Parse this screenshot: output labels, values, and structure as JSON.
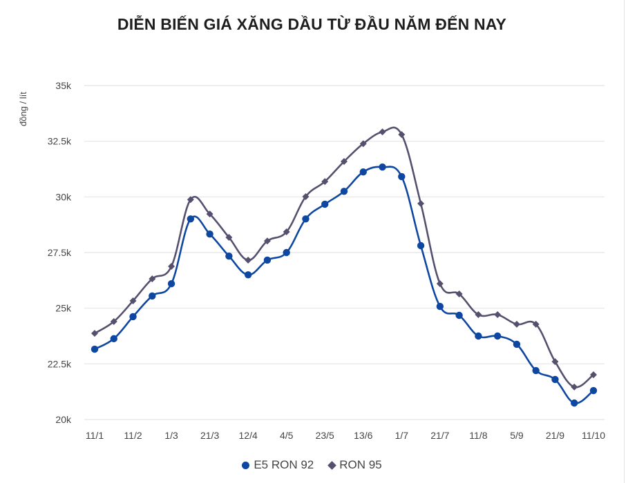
{
  "chart_data": {
    "type": "line",
    "title": "DIỄN BIẾN GIÁ XĂNG DẦU TỪ ĐẦU NĂM ĐẾN NAY",
    "xlabel": "",
    "ylabel": "đồng / lít",
    "ylim": [
      20000,
      35000
    ],
    "yticks": [
      20000,
      22500,
      25000,
      27500,
      30000,
      32500,
      35000
    ],
    "ytick_labels": [
      "20k",
      "22.5k",
      "25k",
      "27.5k",
      "30k",
      "32.5k",
      "35k"
    ],
    "x_tick_labels": [
      "11/1",
      "11/2",
      "1/3",
      "21/3",
      "12/4",
      "4/5",
      "23/5",
      "13/6",
      "1/7",
      "21/7",
      "11/8",
      "5/9",
      "21/9",
      "11/10"
    ],
    "x_tick_every": 2,
    "num_points": 27,
    "grid": "horizontal",
    "legend_position": "bottom",
    "series": [
      {
        "name": "E5 RON 92",
        "color": "#0d47a1",
        "marker": "circle",
        "values": [
          23160,
          23630,
          24620,
          25550,
          26100,
          29010,
          28330,
          27340,
          26500,
          27160,
          27500,
          29010,
          29670,
          30250,
          31120,
          31340,
          30910,
          27810,
          25080,
          24680,
          23750,
          23750,
          23380,
          22200,
          21800,
          20740,
          21300
        ]
      },
      {
        "name": "RON 95",
        "color": "#54506e",
        "marker": "diamond",
        "values": [
          23870,
          24400,
          25330,
          26320,
          26880,
          29880,
          29230,
          28180,
          27160,
          28020,
          28430,
          30010,
          30690,
          31590,
          32390,
          32920,
          32800,
          29700,
          26100,
          25640,
          24710,
          24710,
          24280,
          24280,
          22600,
          21460,
          22010
        ]
      }
    ]
  },
  "page": {
    "title": "DIỄN BIẾN GIÁ XĂNG DẦU TỪ ĐẦU NĂM ĐẾN NAY",
    "ylabel": "đồng / lít",
    "legend": [
      "E5 RON 92",
      "RON 95"
    ]
  }
}
